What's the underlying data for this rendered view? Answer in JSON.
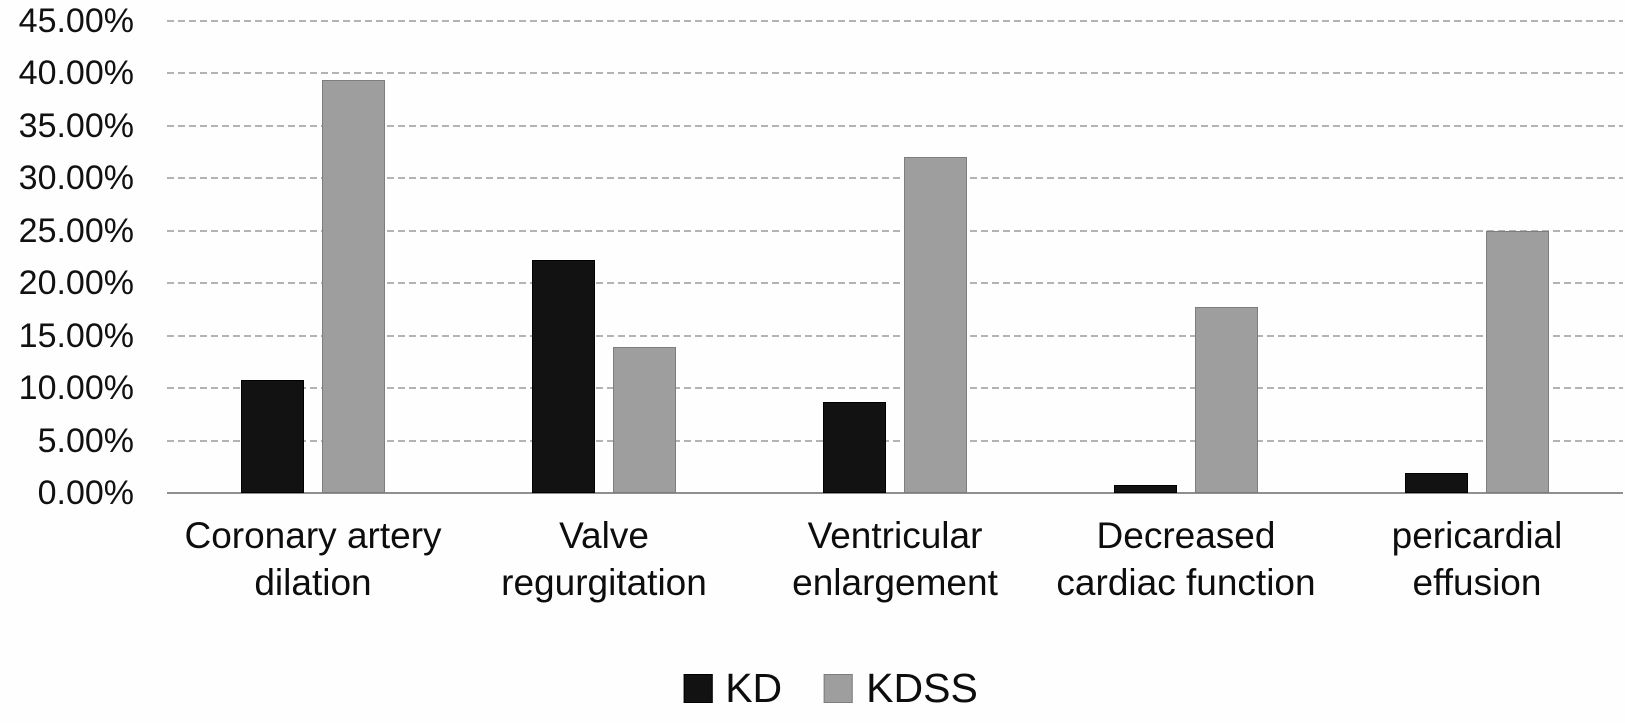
{
  "chart_data": {
    "type": "bar",
    "title": "",
    "xlabel": "",
    "ylabel": "",
    "categories": [
      "Coronary artery dilation",
      "Valve regurgitation",
      "Ventricular enlargement",
      "Decreased cardiac function",
      "pericardial effusion"
    ],
    "category_lines": [
      [
        "Coronary artery",
        "dilation"
      ],
      [
        "Valve",
        "regurgitation"
      ],
      [
        "Ventricular",
        "enlargement"
      ],
      [
        "Decreased",
        "cardiac function"
      ],
      [
        "pericardial",
        "effusion"
      ]
    ],
    "series": [
      {
        "name": "KD",
        "color": "#121212",
        "border_color": "#000000",
        "values": [
          10.8,
          22.2,
          8.7,
          0.8,
          1.9
        ]
      },
      {
        "name": "KDSS",
        "color": "#9e9e9e",
        "border_color": "#7d7d7d",
        "values": [
          39.4,
          13.9,
          32.0,
          17.7,
          25.0
        ]
      }
    ],
    "y_axis": {
      "min": 0,
      "max": 45,
      "step": 5,
      "tick_labels": [
        "0.00%",
        "5.00%",
        "10.00%",
        "15.00%",
        "20.00%",
        "25.00%",
        "30.00%",
        "35.00%",
        "40.00%",
        "45.00%"
      ]
    },
    "legend": {
      "position": "bottom",
      "entries": [
        {
          "label": "KD",
          "color": "#121212"
        },
        {
          "label": "KDSS",
          "color": "#9e9e9e"
        }
      ]
    },
    "grid": true,
    "gridline_color": "#b3b3b3",
    "axis_line_color": "#8f8f8f",
    "background_color": "#fefefe"
  }
}
